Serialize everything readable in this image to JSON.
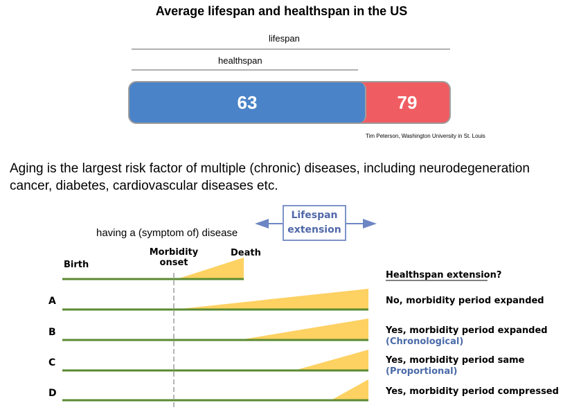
{
  "title": "Average lifespan and healthspan in the US",
  "labels": {
    "lifespan": "lifespan",
    "healthspan": "healthspan"
  },
  "bar": {
    "healthspan_value": "63",
    "lifespan_value": "79",
    "colors": {
      "healthspan": "#4a83c8",
      "lifespan": "#ef5d62"
    }
  },
  "credit": "Tim Peterson, Washington University in St. Louis",
  "statement": "Aging is the largest risk factor of multiple (chronic) diseases, including neurodegeneration cancer, diabetes, cardiovascular diseases etc.",
  "diagram": {
    "disease_text": "having a (symptom of) disease",
    "extension_line1": "Lifespan",
    "extension_line2": "extension",
    "birth": "Birth",
    "morbidity_line1": "Morbidity",
    "morbidity_line2": "onset",
    "death": "Death",
    "question": "Healthspan extension?",
    "rows": [
      {
        "letter": "A",
        "answer": "No, morbidity period expanded",
        "sub": ""
      },
      {
        "letter": "B",
        "answer": "Yes, morbidity period expanded",
        "sub": "(Chronological)"
      },
      {
        "letter": "C",
        "answer": "Yes, morbidity period same",
        "sub": "(Proportional)"
      },
      {
        "letter": "D",
        "answer": "Yes, morbidity period compressed",
        "sub": ""
      }
    ],
    "colors": {
      "timeline": "#5a8a32",
      "morbidity": "#fdd162",
      "arrow": "#6c86c4"
    }
  }
}
